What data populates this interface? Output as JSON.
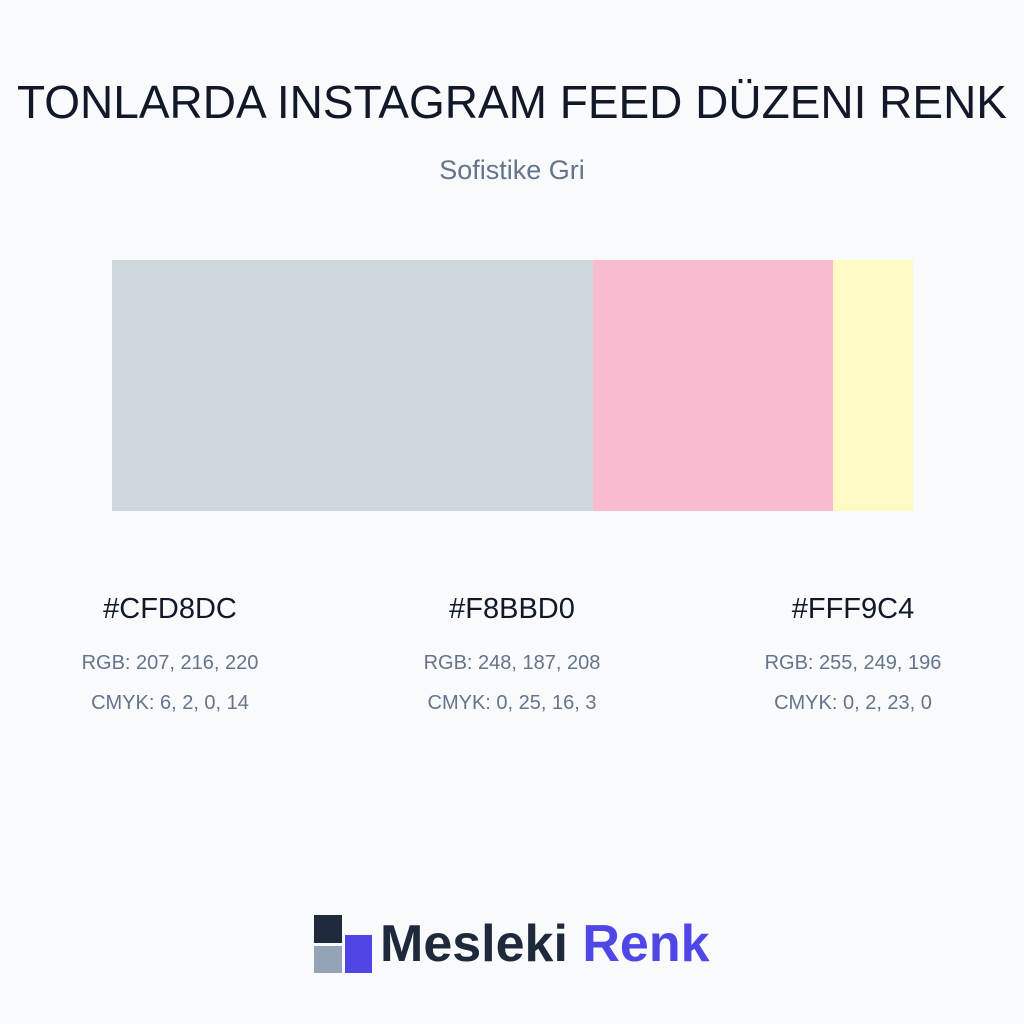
{
  "header": {
    "title": "TONLARDA INSTAGRAM FEED DÜZENI RENK",
    "subtitle": "Sofistike Gri"
  },
  "colors": [
    {
      "hex": "#CFD8DC",
      "rgb": "RGB: 207, 216, 220",
      "cmyk": "CMYK: 6, 2, 0, 14"
    },
    {
      "hex": "#F8BBD0",
      "rgb": "RGB: 248, 187, 208",
      "cmyk": "CMYK: 0, 25, 16, 3"
    },
    {
      "hex": "#FFF9C4",
      "rgb": "RGB: 255, 249, 196",
      "cmyk": "CMYK: 0, 2, 23, 0"
    }
  ],
  "logo": {
    "brand": "Mesleki",
    "accent": "Renk"
  }
}
